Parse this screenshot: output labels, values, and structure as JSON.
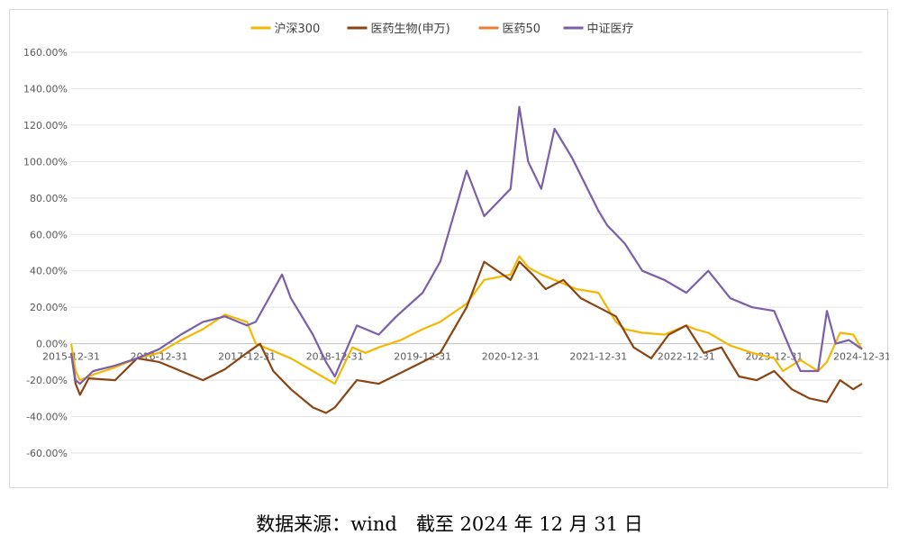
{
  "chart_data": {
    "type": "line",
    "title": "",
    "xlabel": "",
    "ylabel": "",
    "ylim": [
      -60,
      160
    ],
    "y_ticks": [
      "160.00%",
      "140.00%",
      "120.00%",
      "100.00%",
      "80.00%",
      "60.00%",
      "40.00%",
      "20.00%",
      "0.00%",
      "-20.00%",
      "-40.00%",
      "-60.00%"
    ],
    "y_tick_values": [
      160,
      140,
      120,
      100,
      80,
      60,
      40,
      20,
      0,
      -20,
      -40,
      -60
    ],
    "x_tick_labels": [
      "2015-12-31",
      "2016-12-31",
      "2017-12-31",
      "2018-12-31",
      "2019-12-31",
      "2020-12-31",
      "2021-12-31",
      "2022-12-31",
      "2023-12-31",
      "2024-12-31"
    ],
    "x_tick_values": [
      2016.0,
      2017.0,
      2018.0,
      2019.0,
      2020.0,
      2021.0,
      2022.0,
      2023.0,
      2024.0,
      2025.0
    ],
    "xlim": [
      2016.0,
      2025.0
    ],
    "grid": "horizontal",
    "legend_position": "top-center",
    "series": [
      {
        "name": "沪深300",
        "color": "#f5b800",
        "x": [
          2016.0,
          2016.05,
          2016.1,
          2016.25,
          2016.5,
          2016.75,
          2017.0,
          2017.25,
          2017.5,
          2017.75,
          2018.0,
          2018.1,
          2018.25,
          2018.5,
          2018.75,
          2019.0,
          2019.2,
          2019.35,
          2019.5,
          2019.75,
          2020.0,
          2020.2,
          2020.5,
          2020.7,
          2021.0,
          2021.1,
          2021.2,
          2021.35,
          2021.5,
          2021.75,
          2022.0,
          2022.2,
          2022.3,
          2022.5,
          2022.75,
          2023.0,
          2023.1,
          2023.25,
          2023.5,
          2023.75,
          2024.0,
          2024.1,
          2024.3,
          2024.5,
          2024.6,
          2024.75,
          2024.9,
          2025.0
        ],
        "values": [
          0,
          -15,
          -20,
          -17,
          -13,
          -8,
          -5,
          2,
          8,
          16,
          12,
          0,
          -3,
          -8,
          -15,
          -22,
          -2,
          -5,
          -2,
          2,
          8,
          12,
          22,
          35,
          38,
          48,
          42,
          38,
          35,
          30,
          28,
          12,
          8,
          6,
          5,
          10,
          8,
          6,
          -1,
          -5,
          -8,
          -15,
          -9,
          -15,
          -10,
          6,
          5,
          -3
        ]
      },
      {
        "name": "医药生物(申万)",
        "color": "#8b4513",
        "x": [
          2016.0,
          2016.05,
          2016.1,
          2016.2,
          2016.5,
          2016.75,
          2017.0,
          2017.25,
          2017.5,
          2017.75,
          2018.0,
          2018.15,
          2018.3,
          2018.5,
          2018.75,
          2018.9,
          2019.0,
          2019.25,
          2019.5,
          2019.75,
          2020.0,
          2020.2,
          2020.5,
          2020.7,
          2021.0,
          2021.1,
          2021.25,
          2021.4,
          2021.6,
          2021.8,
          2022.0,
          2022.2,
          2022.4,
          2022.6,
          2022.8,
          2023.0,
          2023.2,
          2023.4,
          2023.6,
          2023.8,
          2024.0,
          2024.2,
          2024.4,
          2024.6,
          2024.75,
          2024.9,
          2025.0
        ],
        "values": [
          -5,
          -22,
          -28,
          -19,
          -20,
          -8,
          -10,
          -15,
          -20,
          -14,
          -5,
          0,
          -15,
          -25,
          -35,
          -38,
          -35,
          -20,
          -22,
          -16,
          -10,
          -5,
          20,
          45,
          35,
          45,
          38,
          30,
          35,
          25,
          20,
          15,
          -2,
          -8,
          5,
          10,
          -5,
          -2,
          -18,
          -20,
          -15,
          -25,
          -30,
          -32,
          -20,
          -25,
          -22
        ]
      },
      {
        "name": "医药50",
        "color": "#ed7d31",
        "x": [],
        "values": []
      },
      {
        "name": "中证医疗",
        "color": "#7b5fa8",
        "x": [
          2016.0,
          2016.05,
          2016.1,
          2016.25,
          2016.5,
          2016.75,
          2017.0,
          2017.25,
          2017.5,
          2017.75,
          2018.0,
          2018.1,
          2018.25,
          2018.4,
          2018.5,
          2018.75,
          2018.9,
          2019.0,
          2019.25,
          2019.5,
          2019.7,
          2020.0,
          2020.2,
          2020.5,
          2020.7,
          2021.0,
          2021.1,
          2021.2,
          2021.35,
          2021.5,
          2021.7,
          2022.0,
          2022.1,
          2022.3,
          2022.5,
          2022.75,
          2023.0,
          2023.25,
          2023.5,
          2023.75,
          2024.0,
          2024.2,
          2024.3,
          2024.5,
          2024.6,
          2024.7,
          2024.85,
          2025.0
        ],
        "values": [
          -5,
          -20,
          -22,
          -15,
          -12,
          -8,
          -3,
          5,
          12,
          15,
          10,
          12,
          25,
          38,
          25,
          5,
          -10,
          -18,
          10,
          5,
          15,
          28,
          45,
          95,
          70,
          85,
          130,
          100,
          85,
          118,
          102,
          73,
          65,
          55,
          40,
          35,
          28,
          40,
          25,
          20,
          18,
          -5,
          -15,
          -15,
          18,
          0,
          2,
          -3
        ]
      }
    ]
  },
  "caption": "数据来源：wind　截至 2024 年 12 月 31 日"
}
